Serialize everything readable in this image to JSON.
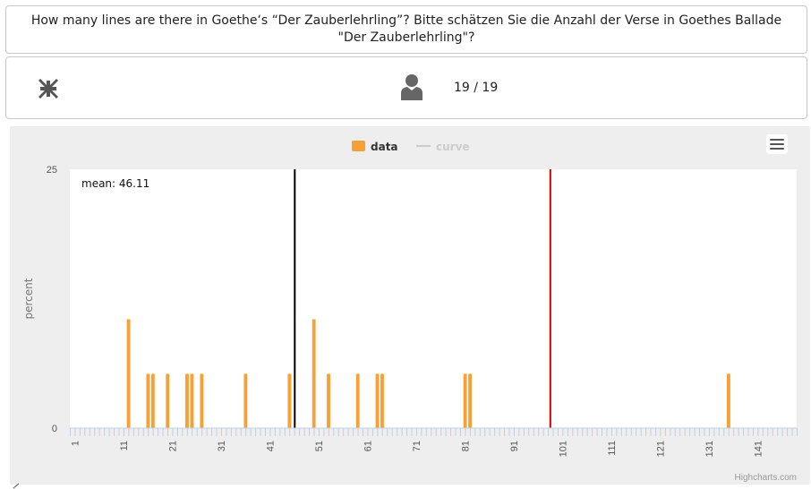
{
  "question": {
    "text": "How many lines are there in Goethe‘s “Der Zauberlehrling”? Bitte schätzen Sie die Anzahl der Verse in Goethes Ballade \"Der Zauberlehrling\"?"
  },
  "toolbar": {
    "collapse_icon": "collapse-arrows-icon",
    "user_icon": "user-icon",
    "response_count": "19 / 19"
  },
  "chart_data": {
    "type": "bar",
    "legend": [
      {
        "name": "data",
        "color": "#f7a035",
        "active": true
      },
      {
        "name": "curve",
        "color": "#cccccc",
        "active": false
      }
    ],
    "legend_position": "top-center",
    "ylabel": "percent",
    "ylim": [
      0,
      25
    ],
    "y_ticks": [
      "0",
      "25"
    ],
    "xlim": [
      0,
      149
    ],
    "x_ticks": [
      "1",
      "11",
      "21",
      "31",
      "41",
      "51",
      "61",
      "71",
      "81",
      "91",
      "101",
      "111",
      "121",
      "131",
      "141"
    ],
    "bars": [
      {
        "x": 12,
        "value": 10.53
      },
      {
        "x": 16,
        "value": 5.26
      },
      {
        "x": 17,
        "value": 5.26
      },
      {
        "x": 20,
        "value": 5.26
      },
      {
        "x": 24,
        "value": 5.26
      },
      {
        "x": 25,
        "value": 5.26
      },
      {
        "x": 27,
        "value": 5.26
      },
      {
        "x": 36,
        "value": 5.26
      },
      {
        "x": 45,
        "value": 5.26
      },
      {
        "x": 50,
        "value": 10.53
      },
      {
        "x": 53,
        "value": 5.26
      },
      {
        "x": 59,
        "value": 5.26
      },
      {
        "x": 63,
        "value": 5.26
      },
      {
        "x": 64,
        "value": 5.26
      },
      {
        "x": 81,
        "value": 5.26
      },
      {
        "x": 82,
        "value": 5.26
      },
      {
        "x": 135,
        "value": 5.26
      }
    ],
    "mean_line": {
      "x": 46.11,
      "color": "#000000",
      "label": "mean: 46.11"
    },
    "reference_line": {
      "x": 98.5,
      "color": "#cc0000"
    },
    "bar_color": "#f7a035",
    "credits": "Highcharts.com"
  }
}
